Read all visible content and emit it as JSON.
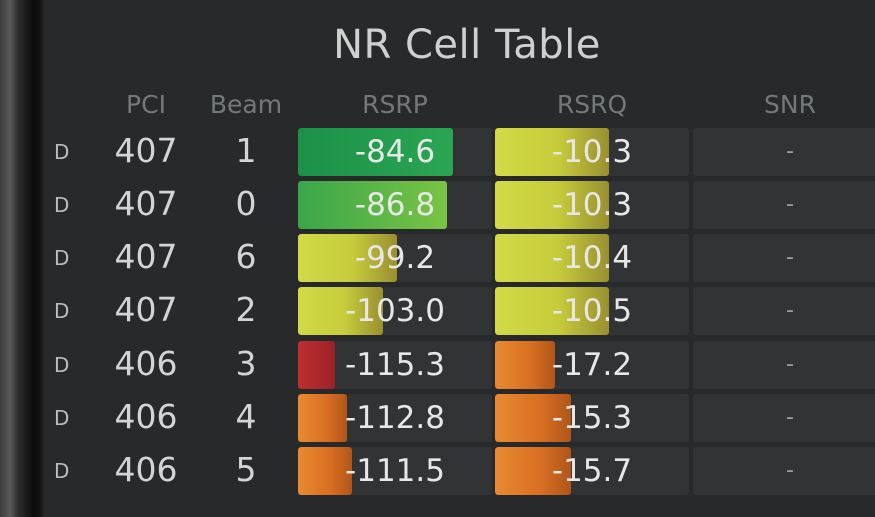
{
  "title": "NR Cell Table",
  "columns": {
    "pci": "PCI",
    "beam": "Beam",
    "rsrp": "RSRP",
    "rsrq": "RSRQ",
    "snr": "SNR"
  },
  "colors": {
    "green_dark": "#1f9a4a",
    "green_light": "#5cbf44",
    "yellow": "#d4dc44",
    "red": "#b0282c",
    "orange": "#e07828"
  },
  "rows": [
    {
      "flag": "D",
      "pci": "407",
      "beam": "1",
      "rsrp": "-84.6",
      "rsrp_fill": 0.8,
      "rsrp_color": "green_dark",
      "rsrq": "-10.3",
      "rsrq_fill": 0.59,
      "rsrq_color": "yellow",
      "snr": "-"
    },
    {
      "flag": "D",
      "pci": "407",
      "beam": "0",
      "rsrp": "-86.8",
      "rsrp_fill": 0.77,
      "rsrp_color": "green_light",
      "rsrq": "-10.3",
      "rsrq_fill": 0.59,
      "rsrq_color": "yellow",
      "snr": "-"
    },
    {
      "flag": "D",
      "pci": "407",
      "beam": "6",
      "rsrp": "-99.2",
      "rsrp_fill": 0.51,
      "rsrp_color": "yellow",
      "rsrq": "-10.4",
      "rsrq_fill": 0.59,
      "rsrq_color": "yellow",
      "snr": "-"
    },
    {
      "flag": "D",
      "pci": "407",
      "beam": "2",
      "rsrp": "-103.0",
      "rsrp_fill": 0.44,
      "rsrp_color": "yellow",
      "rsrq": "-10.5",
      "rsrq_fill": 0.59,
      "rsrq_color": "yellow",
      "snr": "-"
    },
    {
      "flag": "D",
      "pci": "406",
      "beam": "3",
      "rsrp": "-115.3",
      "rsrp_fill": 0.19,
      "rsrp_color": "red",
      "rsrq": "-17.2",
      "rsrq_fill": 0.31,
      "rsrq_color": "orange",
      "snr": "-"
    },
    {
      "flag": "D",
      "pci": "406",
      "beam": "4",
      "rsrp": "-112.8",
      "rsrp_fill": 0.25,
      "rsrp_color": "orange",
      "rsrq": "-15.3",
      "rsrq_fill": 0.39,
      "rsrq_color": "orange",
      "snr": "-"
    },
    {
      "flag": "D",
      "pci": "406",
      "beam": "5",
      "rsrp": "-111.5",
      "rsrp_fill": 0.28,
      "rsrp_color": "orange",
      "rsrq": "-15.7",
      "rsrq_fill": 0.39,
      "rsrq_color": "orange",
      "snr": "-"
    }
  ]
}
